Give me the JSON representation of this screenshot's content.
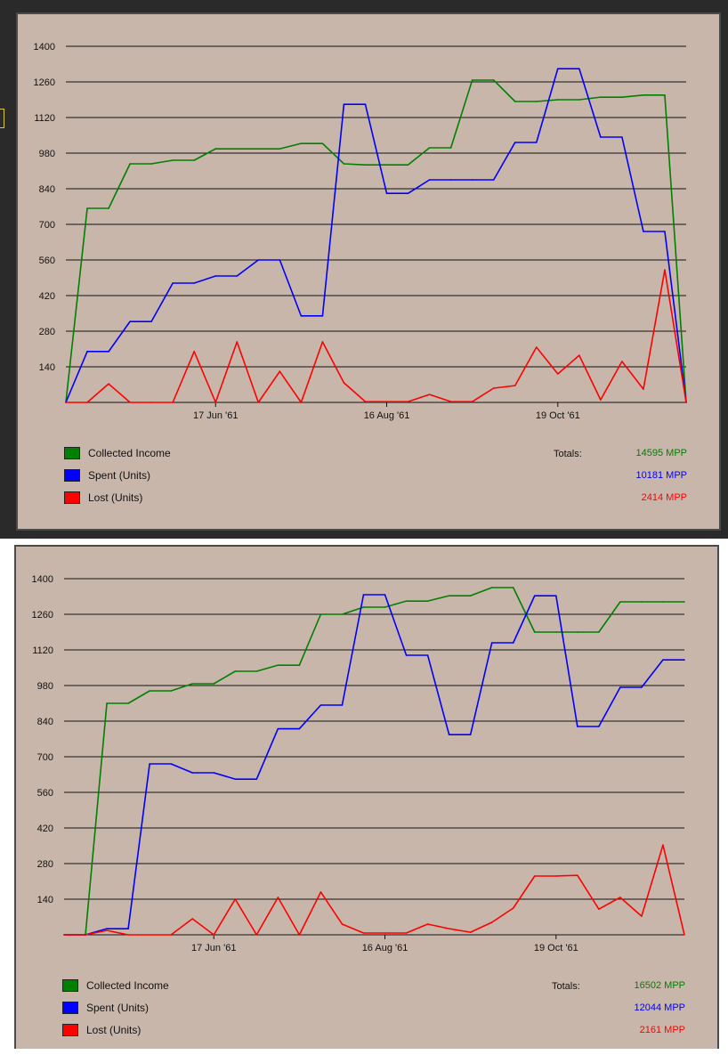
{
  "chart_data": [
    {
      "type": "line",
      "title": "",
      "ylim": [
        0,
        1400
      ],
      "yticks": [
        140,
        280,
        420,
        560,
        700,
        840,
        980,
        1120,
        1260,
        1400
      ],
      "xtick_labels": [
        {
          "index": 7,
          "label": "17 Jun '61"
        },
        {
          "index": 15,
          "label": "16 Aug '61"
        },
        {
          "index": 23,
          "label": "19 Oct '61"
        }
      ],
      "series": [
        {
          "name": "Collected Income",
          "color": "#008000",
          "values": [
            0,
            763,
            763,
            938,
            938,
            952,
            952,
            997,
            997,
            997,
            997,
            1018,
            1018,
            938,
            934,
            934,
            934,
            1001,
            1001,
            1267,
            1267,
            1183,
            1183,
            1190,
            1190,
            1200,
            1200,
            1208,
            1208,
            0
          ]
        },
        {
          "name": "Spent (Units)",
          "color": "#0000ff",
          "values": [
            0,
            200,
            200,
            318,
            318,
            469,
            469,
            497,
            497,
            560,
            560,
            340,
            340,
            1172,
            1172,
            822,
            822,
            875,
            875,
            875,
            875,
            1022,
            1022,
            1312,
            1312,
            1043,
            1043,
            672,
            672,
            0
          ]
        },
        {
          "name": "Lost (Units)",
          "color": "#ff0000",
          "values": [
            0,
            0,
            73,
            0,
            0,
            0,
            200,
            0,
            238,
            0,
            122,
            0,
            238,
            77,
            3,
            3,
            3,
            31,
            3,
            3,
            56,
            66,
            217,
            112,
            185,
            10,
            161,
            52,
            521,
            0
          ]
        }
      ],
      "totals_label": "Totals:",
      "totals": [
        "14595 MPP",
        "10181 MPP",
        "2414 MPP"
      ]
    },
    {
      "type": "line",
      "title": "",
      "ylim": [
        0,
        1400
      ],
      "yticks": [
        140,
        280,
        420,
        560,
        700,
        840,
        980,
        1120,
        1260,
        1400
      ],
      "xtick_labels": [
        {
          "index": 7,
          "label": "17 Jun '61"
        },
        {
          "index": 15,
          "label": "16 Aug '61"
        },
        {
          "index": 23,
          "label": "19 Oct '61"
        }
      ],
      "series": [
        {
          "name": "Collected Income",
          "color": "#008000",
          "values": [
            0,
            0,
            910,
            910,
            959,
            959,
            987,
            987,
            1036,
            1036,
            1060,
            1060,
            1260,
            1260,
            1288,
            1288,
            1312,
            1312,
            1333,
            1333,
            1365,
            1365,
            1190,
            1190,
            1190,
            1190,
            1309,
            1309,
            1309,
            1309
          ]
        },
        {
          "name": "Spent (Units)",
          "color": "#0000ff",
          "values": [
            0,
            0,
            24,
            24,
            672,
            672,
            637,
            637,
            612,
            612,
            810,
            810,
            903,
            903,
            1337,
            1337,
            1099,
            1099,
            787,
            787,
            1148,
            1148,
            1333,
            1333,
            819,
            819,
            973,
            973,
            1081,
            1081
          ]
        },
        {
          "name": "Lost (Units)",
          "color": "#ff0000",
          "values": [
            0,
            0,
            17,
            0,
            0,
            0,
            63,
            0,
            140,
            0,
            147,
            0,
            168,
            42,
            7,
            7,
            7,
            42,
            24,
            10,
            49,
            105,
            231,
            231,
            234,
            101,
            147,
            73,
            353,
            0
          ]
        }
      ],
      "totals_label": "Totals:",
      "totals": [
        "16502 MPP",
        "12044 MPP",
        "2161 MPP"
      ]
    }
  ]
}
